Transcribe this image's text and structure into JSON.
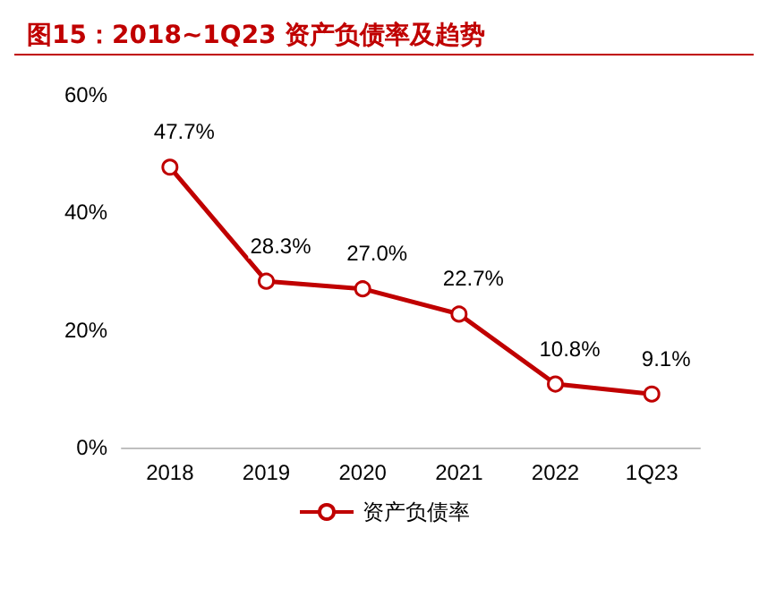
{
  "chart_data": {
    "type": "line",
    "title": "图15：2018~1Q23 资产负债率及趋势",
    "categories": [
      "2018",
      "2019",
      "2020",
      "2021",
      "2022",
      "1Q23"
    ],
    "series": [
      {
        "name": "资产负债率",
        "color": "#c00000",
        "values": [
          47.7,
          28.3,
          27.0,
          22.7,
          10.8,
          9.1
        ],
        "value_labels": [
          "47.7%",
          "28.3%",
          "27.0%",
          "22.7%",
          "10.8%",
          "9.1%"
        ]
      }
    ],
    "ylim": [
      0,
      60
    ],
    "yticks": [
      {
        "value": 0,
        "label": "0%"
      },
      {
        "value": 20,
        "label": "20%"
      },
      {
        "value": 40,
        "label": "40%"
      },
      {
        "value": 60,
        "label": "60%"
      }
    ],
    "legend": "bottom",
    "marker": "circle",
    "line_style": "solid"
  }
}
